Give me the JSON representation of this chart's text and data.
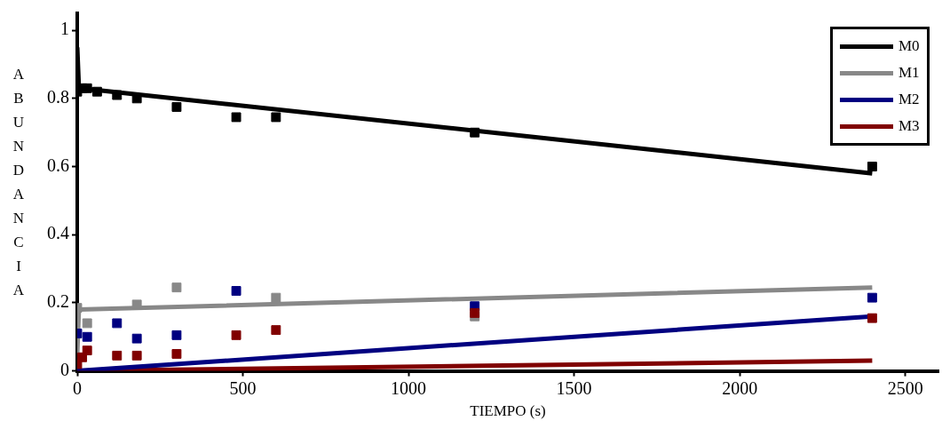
{
  "chart_data": {
    "type": "scatter",
    "xlabel": "TIEMPO (s)",
    "ylabel": "ABUNDANCIA",
    "xlim": [
      0,
      2600
    ],
    "xticks": [
      0,
      500,
      1000,
      1500,
      2000,
      2500
    ],
    "ylim": [
      0,
      1.05
    ],
    "yticks": [
      0,
      0.2,
      0.4,
      0.6,
      0.8,
      1
    ],
    "grid": false,
    "legend": "top right",
    "marker": "square",
    "series": [
      {
        "name": "M0",
        "type": "line",
        "marker": "none",
        "color": "#000000",
        "x": [
          0,
          5,
          2400
        ],
        "values": [
          0.95,
          0.83,
          0.58
        ]
      },
      {
        "name": "M1",
        "type": "line",
        "marker": "none",
        "color": "#888888",
        "x": [
          0,
          5,
          2400
        ],
        "values": [
          0.05,
          0.18,
          0.245
        ]
      },
      {
        "name": "M2",
        "type": "line",
        "marker": "none",
        "color": "#000080",
        "x": [
          0,
          2400
        ],
        "values": [
          0,
          0.16
        ]
      },
      {
        "name": "M3",
        "type": "line",
        "marker": "none",
        "color": "#800000",
        "x": [
          0,
          2400
        ],
        "values": [
          0,
          0.03
        ]
      },
      {
        "type": "scatter",
        "color": "#000000",
        "x": [
          0,
          15,
          30,
          60,
          120,
          180,
          300,
          480,
          600,
          1200,
          2400
        ],
        "values": [
          0.82,
          0.83,
          0.83,
          0.82,
          0.81,
          0.8,
          0.775,
          0.745,
          0.745,
          0.7,
          0.6
        ]
      },
      {
        "type": "scatter",
        "color": "#888888",
        "x": [
          0,
          30,
          180,
          300,
          600,
          1200
        ],
        "values": [
          0.185,
          0.14,
          0.195,
          0.245,
          0.215,
          0.16
        ]
      },
      {
        "type": "scatter",
        "color": "#000080",
        "x": [
          0,
          30,
          120,
          180,
          300,
          480,
          1200,
          2400
        ],
        "values": [
          0.11,
          0.1,
          0.14,
          0.095,
          0.105,
          0.235,
          0.19,
          0.215
        ]
      },
      {
        "type": "scatter",
        "color": "#800000",
        "x": [
          0,
          15,
          30,
          120,
          180,
          300,
          480,
          600,
          1200,
          2400
        ],
        "values": [
          0.02,
          0.04,
          0.06,
          0.045,
          0.045,
          0.05,
          0.105,
          0.12,
          0.17,
          0.155
        ]
      }
    ]
  }
}
